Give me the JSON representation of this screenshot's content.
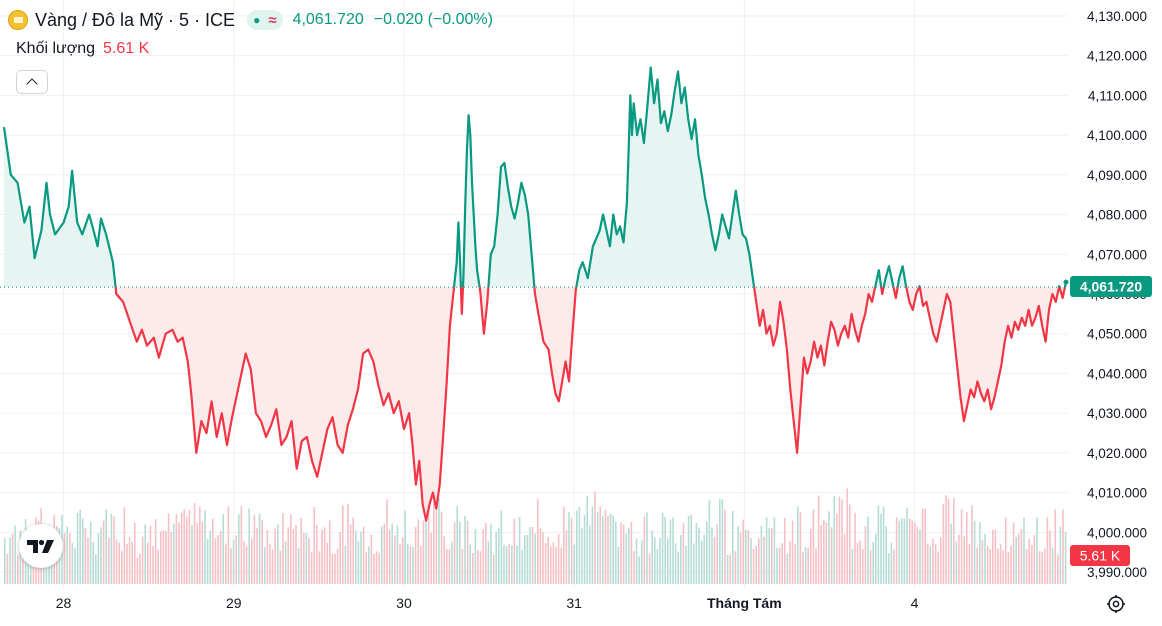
{
  "header": {
    "symbol": "Vàng / Đô la Mỹ · 5 · ICE",
    "status_dot": "●",
    "status_wave": "≈",
    "last_price": "4,061.720",
    "change": "−0.020 (−0.00%)"
  },
  "volume_label": "Khối lượng",
  "volume_value": "5.61 K",
  "icons": {
    "logo": "gold-bars-icon",
    "collapse": "chevron-up-icon",
    "tradingview": "tradingview-logo-icon",
    "settings": "gear-icon"
  },
  "colors": {
    "up": "#089981",
    "down": "#f23645",
    "up_fill": "#e3f3f0",
    "down_fill": "#fde6e8",
    "grid": "#eef0f3",
    "vol_up": "#b6ddd6",
    "vol_down": "#f6c1c6"
  },
  "chart_data": {
    "type": "line",
    "baseline": 4061.72,
    "ylim": [
      3986,
      4134
    ],
    "y_ticks": [
      "4,130.000",
      "4,120.000",
      "4,110.000",
      "4,100.000",
      "4,090.000",
      "4,080.000",
      "4,070.000",
      "4,060.000",
      "4,050.000",
      "4,040.000",
      "4,030.000",
      "4,020.000",
      "4,010.000",
      "4,000.000",
      "3,990.000"
    ],
    "y_tick_values": [
      4130,
      4120,
      4110,
      4100,
      4090,
      4080,
      4070,
      4060,
      4050,
      4040,
      4030,
      4020,
      4010,
      4000,
      3990
    ],
    "last_price_label": "4,061.720",
    "last_volume_label": "5.61 K",
    "x_ticks": [
      {
        "label": "28",
        "t": 0.35,
        "bold": false
      },
      {
        "label": "29",
        "t": 1.35,
        "bold": false
      },
      {
        "label": "30",
        "t": 2.35,
        "bold": false
      },
      {
        "label": "31",
        "t": 3.35,
        "bold": false
      },
      {
        "label": "Tháng Tám",
        "t": 4.35,
        "bold": true
      },
      {
        "label": "4",
        "t": 5.35,
        "bold": false
      }
    ],
    "t_range": [
      0.0,
      5.72
    ],
    "series": [
      {
        "points": [
          [
            0.0,
            4102
          ],
          [
            0.04,
            4090
          ],
          [
            0.08,
            4088
          ],
          [
            0.12,
            4078
          ],
          [
            0.15,
            4082
          ],
          [
            0.18,
            4069
          ],
          [
            0.22,
            4076
          ],
          [
            0.25,
            4088
          ],
          [
            0.27,
            4080
          ],
          [
            0.3,
            4075
          ],
          [
            0.35,
            4078
          ],
          [
            0.38,
            4082
          ],
          [
            0.4,
            4091
          ],
          [
            0.43,
            4078
          ],
          [
            0.46,
            4075
          ],
          [
            0.5,
            4080
          ],
          [
            0.52,
            4077
          ],
          [
            0.55,
            4072
          ],
          [
            0.57,
            4079
          ],
          [
            0.6,
            4075
          ],
          [
            0.64,
            4068
          ],
          [
            0.66,
            4060
          ],
          [
            0.7,
            4058
          ],
          [
            0.74,
            4053
          ],
          [
            0.78,
            4048
          ],
          [
            0.81,
            4051
          ],
          [
            0.84,
            4047
          ],
          [
            0.88,
            4049
          ],
          [
            0.91,
            4044
          ],
          [
            0.95,
            4050
          ],
          [
            0.99,
            4051
          ],
          [
            1.02,
            4048
          ],
          [
            1.05,
            4049
          ],
          [
            1.08,
            4043
          ],
          [
            1.1,
            4035
          ],
          [
            1.13,
            4020
          ],
          [
            1.16,
            4028
          ],
          [
            1.19,
            4025
          ],
          [
            1.22,
            4033
          ],
          [
            1.25,
            4024
          ],
          [
            1.28,
            4030
          ],
          [
            1.31,
            4022
          ],
          [
            1.34,
            4029
          ],
          [
            1.36,
            4033
          ],
          [
            1.39,
            4039
          ],
          [
            1.42,
            4045
          ],
          [
            1.45,
            4041
          ],
          [
            1.48,
            4030
          ],
          [
            1.51,
            4028
          ],
          [
            1.54,
            4024
          ],
          [
            1.57,
            4027
          ],
          [
            1.6,
            4031
          ],
          [
            1.63,
            4022
          ],
          [
            1.66,
            4024
          ],
          [
            1.69,
            4028
          ],
          [
            1.72,
            4016
          ],
          [
            1.75,
            4023
          ],
          [
            1.78,
            4024
          ],
          [
            1.81,
            4018
          ],
          [
            1.84,
            4014
          ],
          [
            1.87,
            4020
          ],
          [
            1.9,
            4026
          ],
          [
            1.93,
            4029
          ],
          [
            1.96,
            4022
          ],
          [
            1.99,
            4020
          ],
          [
            2.02,
            4027
          ],
          [
            2.05,
            4031
          ],
          [
            2.08,
            4036
          ],
          [
            2.11,
            4045
          ],
          [
            2.14,
            4046
          ],
          [
            2.17,
            4043
          ],
          [
            2.2,
            4037
          ],
          [
            2.23,
            4032
          ],
          [
            2.26,
            4035
          ],
          [
            2.29,
            4030
          ],
          [
            2.32,
            4033
          ],
          [
            2.35,
            4026
          ],
          [
            2.38,
            4030
          ],
          [
            2.4,
            4022
          ],
          [
            2.42,
            4012
          ],
          [
            2.44,
            4018
          ],
          [
            2.46,
            4007
          ],
          [
            2.48,
            4003
          ],
          [
            2.5,
            4007
          ],
          [
            2.52,
            4010
          ],
          [
            2.54,
            4006
          ],
          [
            2.56,
            4012
          ],
          [
            2.58,
            4024
          ],
          [
            2.6,
            4037
          ],
          [
            2.62,
            4052
          ],
          [
            2.64,
            4060
          ],
          [
            2.66,
            4068
          ],
          [
            2.67,
            4078
          ],
          [
            2.68,
            4068
          ],
          [
            2.69,
            4055
          ],
          [
            2.7,
            4065
          ],
          [
            2.71,
            4082
          ],
          [
            2.72,
            4096
          ],
          [
            2.73,
            4105
          ],
          [
            2.74,
            4100
          ],
          [
            2.75,
            4088
          ],
          [
            2.76,
            4080
          ],
          [
            2.77,
            4072
          ],
          [
            2.78,
            4066
          ],
          [
            2.8,
            4060
          ],
          [
            2.82,
            4050
          ],
          [
            2.84,
            4058
          ],
          [
            2.86,
            4070
          ],
          [
            2.88,
            4072
          ],
          [
            2.9,
            4080
          ],
          [
            2.92,
            4092
          ],
          [
            2.94,
            4093
          ],
          [
            2.96,
            4087
          ],
          [
            2.98,
            4082
          ],
          [
            3.0,
            4079
          ],
          [
            3.02,
            4083
          ],
          [
            3.04,
            4088
          ],
          [
            3.06,
            4085
          ],
          [
            3.08,
            4080
          ],
          [
            3.1,
            4070
          ],
          [
            3.12,
            4060
          ],
          [
            3.14,
            4055
          ],
          [
            3.17,
            4048
          ],
          [
            3.2,
            4046
          ],
          [
            3.22,
            4040
          ],
          [
            3.24,
            4035
          ],
          [
            3.26,
            4033
          ],
          [
            3.28,
            4038
          ],
          [
            3.3,
            4043
          ],
          [
            3.32,
            4038
          ],
          [
            3.34,
            4050
          ],
          [
            3.36,
            4061
          ],
          [
            3.38,
            4066
          ],
          [
            3.4,
            4068
          ],
          [
            3.43,
            4064
          ],
          [
            3.46,
            4072
          ],
          [
            3.48,
            4074
          ],
          [
            3.5,
            4076
          ],
          [
            3.52,
            4080
          ],
          [
            3.54,
            4076
          ],
          [
            3.56,
            4072
          ],
          [
            3.58,
            4080
          ],
          [
            3.6,
            4075
          ],
          [
            3.62,
            4077
          ],
          [
            3.64,
            4073
          ],
          [
            3.66,
            4083
          ],
          [
            3.67,
            4096
          ],
          [
            3.68,
            4110
          ],
          [
            3.69,
            4100
          ],
          [
            3.7,
            4108
          ],
          [
            3.72,
            4100
          ],
          [
            3.74,
            4104
          ],
          [
            3.76,
            4098
          ],
          [
            3.78,
            4107
          ],
          [
            3.8,
            4117
          ],
          [
            3.82,
            4108
          ],
          [
            3.84,
            4114
          ],
          [
            3.86,
            4103
          ],
          [
            3.88,
            4106
          ],
          [
            3.9,
            4101
          ],
          [
            3.92,
            4105
          ],
          [
            3.94,
            4111
          ],
          [
            3.96,
            4116
          ],
          [
            3.98,
            4108
          ],
          [
            4.0,
            4112
          ],
          [
            4.02,
            4104
          ],
          [
            4.04,
            4099
          ],
          [
            4.06,
            4104
          ],
          [
            4.08,
            4095
          ],
          [
            4.1,
            4090
          ],
          [
            4.12,
            4084
          ],
          [
            4.14,
            4080
          ],
          [
            4.16,
            4075
          ],
          [
            4.18,
            4071
          ],
          [
            4.2,
            4075
          ],
          [
            4.22,
            4080
          ],
          [
            4.24,
            4077
          ],
          [
            4.26,
            4074
          ],
          [
            4.28,
            4080
          ],
          [
            4.3,
            4086
          ],
          [
            4.32,
            4080
          ],
          [
            4.34,
            4075
          ],
          [
            4.36,
            4074
          ],
          [
            4.38,
            4070
          ],
          [
            4.4,
            4064
          ],
          [
            4.42,
            4058
          ],
          [
            4.44,
            4052
          ],
          [
            4.46,
            4056
          ],
          [
            4.48,
            4050
          ],
          [
            4.5,
            4052
          ],
          [
            4.52,
            4047
          ],
          [
            4.54,
            4050
          ],
          [
            4.56,
            4058
          ],
          [
            4.58,
            4053
          ],
          [
            4.6,
            4046
          ],
          [
            4.62,
            4036
          ],
          [
            4.64,
            4028
          ],
          [
            4.66,
            4020
          ],
          [
            4.68,
            4032
          ],
          [
            4.7,
            4044
          ],
          [
            4.72,
            4040
          ],
          [
            4.74,
            4043
          ],
          [
            4.76,
            4048
          ],
          [
            4.78,
            4044
          ],
          [
            4.8,
            4047
          ],
          [
            4.82,
            4042
          ],
          [
            4.84,
            4048
          ],
          [
            4.86,
            4053
          ],
          [
            4.88,
            4051
          ],
          [
            4.9,
            4047
          ],
          [
            4.92,
            4050
          ],
          [
            4.94,
            4052
          ],
          [
            4.96,
            4049
          ],
          [
            4.98,
            4055
          ],
          [
            5.0,
            4051
          ],
          [
            5.02,
            4048
          ],
          [
            5.04,
            4052
          ],
          [
            5.06,
            4055
          ],
          [
            5.08,
            4060
          ],
          [
            5.1,
            4058
          ],
          [
            5.12,
            4062
          ],
          [
            5.14,
            4066
          ],
          [
            5.16,
            4060
          ],
          [
            5.18,
            4064
          ],
          [
            5.2,
            4067
          ],
          [
            5.22,
            4063
          ],
          [
            5.24,
            4059
          ],
          [
            5.26,
            4064
          ],
          [
            5.28,
            4067
          ],
          [
            5.3,
            4062
          ],
          [
            5.32,
            4058
          ],
          [
            5.34,
            4056
          ],
          [
            5.36,
            4060
          ],
          [
            5.38,
            4062
          ],
          [
            5.4,
            4057
          ],
          [
            5.42,
            4058
          ],
          [
            5.44,
            4054
          ],
          [
            5.46,
            4050
          ],
          [
            5.48,
            4048
          ],
          [
            5.5,
            4052
          ],
          [
            5.52,
            4056
          ],
          [
            5.54,
            4060
          ],
          [
            5.56,
            4058
          ],
          [
            5.58,
            4050
          ],
          [
            5.6,
            4042
          ],
          [
            5.62,
            4034
          ],
          [
            5.64,
            4028
          ],
          [
            5.66,
            4032
          ],
          [
            5.68,
            4036
          ],
          [
            5.7,
            4034
          ],
          [
            5.72,
            4038
          ],
          [
            5.74,
            4035
          ],
          [
            5.76,
            4033
          ],
          [
            5.78,
            4036
          ],
          [
            5.8,
            4031
          ],
          [
            5.82,
            4034
          ],
          [
            5.84,
            4038
          ],
          [
            5.86,
            4042
          ],
          [
            5.88,
            4048
          ],
          [
            5.9,
            4052
          ],
          [
            5.92,
            4049
          ],
          [
            5.94,
            4053
          ],
          [
            5.96,
            4051
          ],
          [
            5.98,
            4054
          ],
          [
            6.0,
            4052
          ],
          [
            6.02,
            4056
          ],
          [
            6.04,
            4052
          ],
          [
            6.06,
            4054
          ],
          [
            6.08,
            4057
          ],
          [
            6.1,
            4052
          ],
          [
            6.12,
            4048
          ],
          [
            6.14,
            4056
          ],
          [
            6.16,
            4060
          ],
          [
            6.18,
            4058
          ],
          [
            6.2,
            4062
          ],
          [
            6.22,
            4059
          ],
          [
            6.24,
            4063
          ]
        ]
      }
    ],
    "volume": {
      "ylim": [
        0,
        6
      ],
      "note_levels": [
        2.6,
        3.4,
        3.0,
        3.3,
        2.7,
        2.9,
        3.6,
        3.2,
        2.8,
        3.0,
        3.1,
        2.7,
        3.5,
        3.8,
        3.1,
        2.9,
        2.6,
        3.3,
        3.6,
        3.0,
        2.8,
        3.2,
        3.4,
        2.9,
        2.7,
        3.1,
        3.7,
        3.2,
        3.0,
        3.3,
        3.5,
        2.8,
        2.6,
        3.0
      ]
    }
  }
}
